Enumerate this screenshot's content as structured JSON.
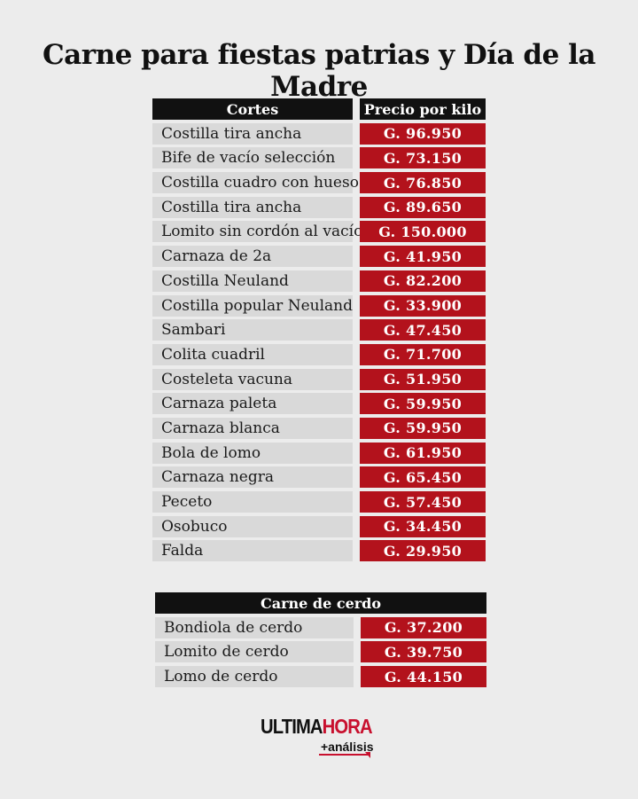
{
  "title": "Carne para fiestas patrias y Día de la Madre",
  "beef_table": {
    "header_name": "Cortes",
    "header_price": "Precio por kilo",
    "rows": [
      {
        "name": "Costilla tira ancha",
        "price": "G. 96.950"
      },
      {
        "name": "Bife de vacío selección",
        "price": "G. 73.150"
      },
      {
        "name": "Costilla cuadro con hueso",
        "price": "G. 76.850"
      },
      {
        "name": "Costilla tira ancha",
        "price": "G. 89.650"
      },
      {
        "name": "Lomito sin cordón al vacío",
        "price": "G. 150.000"
      },
      {
        "name": "Carnaza de 2a",
        "price": "G. 41.950"
      },
      {
        "name": "Costilla Neuland",
        "price": "G. 82.200"
      },
      {
        "name": "Costilla popular Neuland",
        "price": "G. 33.900"
      },
      {
        "name": "Sambari",
        "price": "G. 47.450"
      },
      {
        "name": "Colita cuadril",
        "price": "G. 71.700"
      },
      {
        "name": "Costeleta vacuna",
        "price": "G. 51.950"
      },
      {
        "name": "Carnaza paleta",
        "price": "G. 59.950"
      },
      {
        "name": "Carnaza blanca",
        "price": "G. 59.950"
      },
      {
        "name": "Bola de lomo",
        "price": "G. 61.950"
      },
      {
        "name": "Carnaza negra",
        "price": "G. 65.450"
      },
      {
        "name": "Peceto",
        "price": "G. 57.450"
      },
      {
        "name": "Osobuco",
        "price": "G. 34.450"
      },
      {
        "name": "Falda",
        "price": "G. 29.950"
      }
    ]
  },
  "pork_table": {
    "header": "Carne de cerdo",
    "rows": [
      {
        "name": "Bondiola de cerdo",
        "price": "G. 37.200"
      },
      {
        "name": "Lomito de cerdo",
        "price": "G. 39.750"
      },
      {
        "name": "Lomo de cerdo",
        "price": "G. 44.150"
      }
    ]
  },
  "logo": {
    "word1": "ULTIMA",
    "word2": "HORA",
    "sub": "+análisis"
  },
  "colors": {
    "background": "#ececec",
    "header_bg": "#111111",
    "name_cell_bg": "#d9d9d9",
    "price_cell_bg": "#b3121c",
    "brand_red": "#c8102e"
  }
}
